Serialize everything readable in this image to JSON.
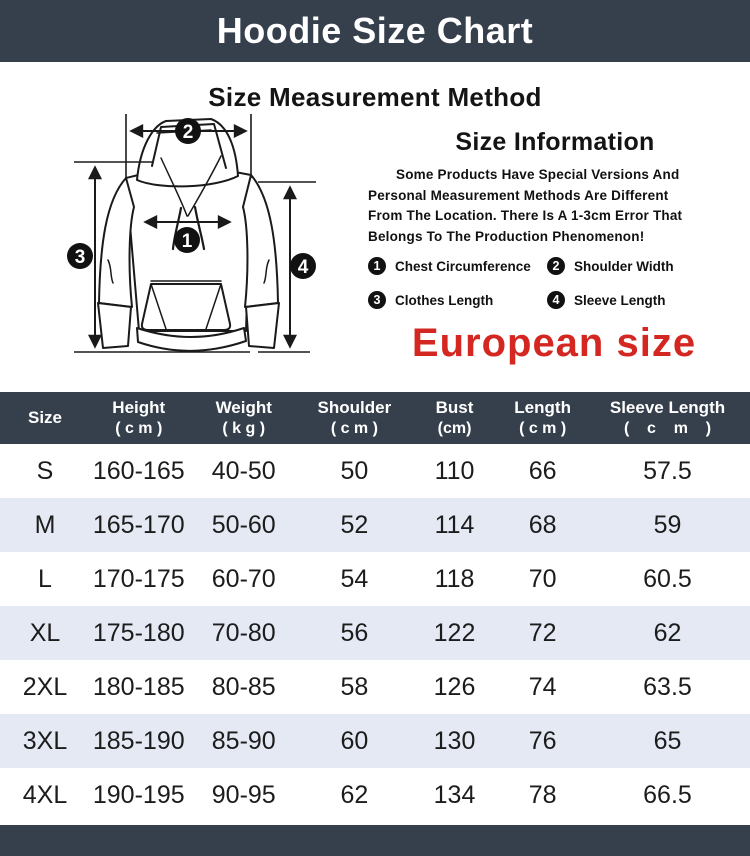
{
  "header": {
    "title": "Hoodie Size Chart"
  },
  "measurement": {
    "title": "Size Measurement Method"
  },
  "info": {
    "title": "Size Information",
    "lines": [
      "Some Products Have Special Versions And",
      "Personal Measurement Methods Are Different",
      "From The Location. There Is A 1-3cm Error That",
      "Belongs To The Production Phenomenon!"
    ],
    "european_size": "European size"
  },
  "legend": {
    "items": [
      {
        "num": "1",
        "label": "Chest Circumference"
      },
      {
        "num": "2",
        "label": "Shoulder Width"
      },
      {
        "num": "3",
        "label": "Clothes Length"
      },
      {
        "num": "4",
        "label": "Sleeve Length"
      }
    ]
  },
  "diagram": {
    "badges": [
      "1",
      "2",
      "3",
      "4"
    ]
  },
  "table": {
    "columns": [
      {
        "label": "Size",
        "unit": ""
      },
      {
        "label": "Height",
        "unit": "( c m )"
      },
      {
        "label": "Weight",
        "unit": "( k g )"
      },
      {
        "label": "Shoulder",
        "unit": "( c m )"
      },
      {
        "label": "Bust",
        "unit": "(cm)"
      },
      {
        "label": "Length",
        "unit": "( c m )"
      },
      {
        "label": "Sleeve Length",
        "unit": "(    c    m    )"
      }
    ],
    "rows": [
      [
        "S",
        "160-165",
        "40-50",
        "50",
        "110",
        "66",
        "57.5"
      ],
      [
        "M",
        "165-170",
        "50-60",
        "52",
        "114",
        "68",
        "59"
      ],
      [
        "L",
        "170-175",
        "60-70",
        "54",
        "118",
        "70",
        "60.5"
      ],
      [
        "XL",
        "175-180",
        "70-80",
        "56",
        "122",
        "72",
        "62"
      ],
      [
        "2XL",
        "180-185",
        "80-85",
        "58",
        "126",
        "74",
        "63.5"
      ],
      [
        "3XL",
        "185-190",
        "85-90",
        "60",
        "130",
        "76",
        "65"
      ],
      [
        "4XL",
        "190-195",
        "90-95",
        "62",
        "134",
        "78",
        "66.5"
      ]
    ]
  },
  "colors": {
    "accent_dark": "#363f4c",
    "row_alt": "#e4e9f4",
    "highlight_red": "#d42721"
  }
}
